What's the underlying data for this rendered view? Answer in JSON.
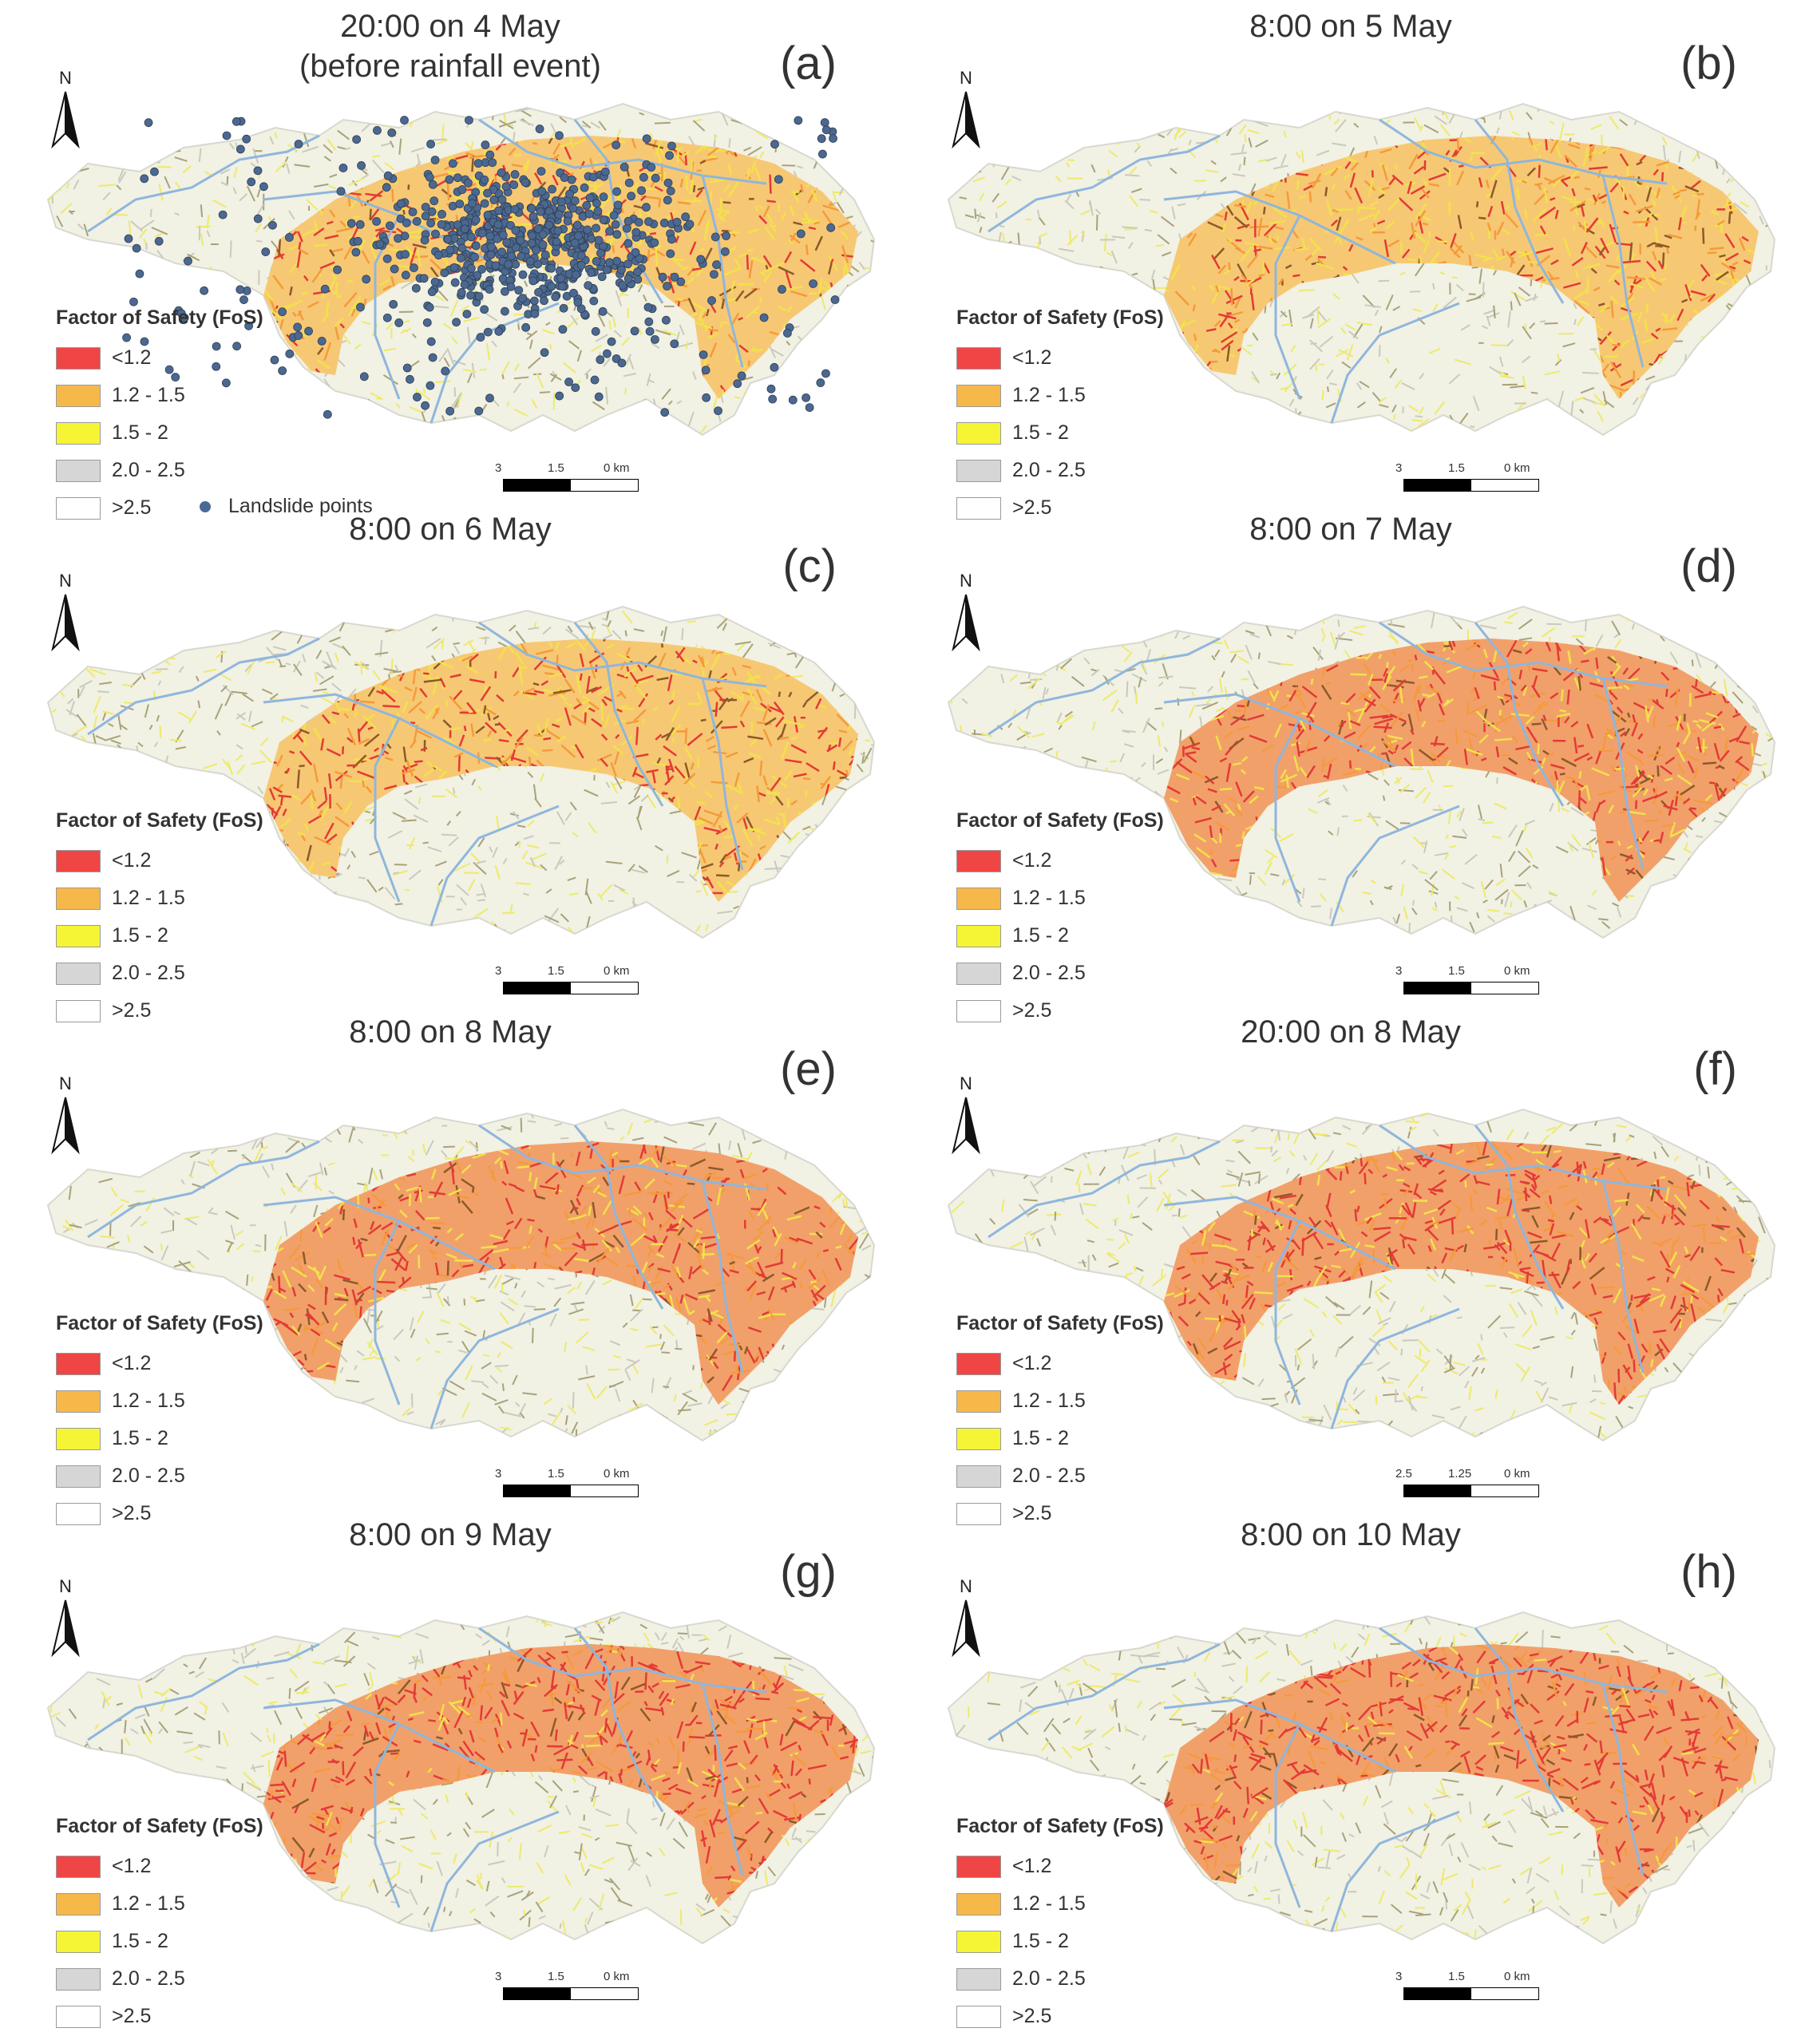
{
  "legend": {
    "title": "Factor of Safety (FoS)",
    "items": [
      {
        "label": "<1.2",
        "color": "#f04545"
      },
      {
        "label": "1.2 - 1.5",
        "color": "#f7b84a"
      },
      {
        "label": "1.5 - 2",
        "color": "#f5f536"
      },
      {
        "label": "2.0 - 2.5",
        "color": "#d6d6d6"
      },
      {
        "label": ">2.5",
        "color": "#ffffff"
      }
    ],
    "landslide_label": "Landslide points"
  },
  "north_label": "N",
  "panels": [
    {
      "letter": "(a)",
      "title": "20:00 on 4 May\n(before rainfall event)",
      "scale": [
        "3",
        "1.5",
        "0 km"
      ],
      "risk": 0.3,
      "landslides": true
    },
    {
      "letter": "(b)",
      "title": "8:00 on 5 May",
      "scale": [
        "3",
        "1.5",
        "0 km"
      ],
      "risk": 0.45,
      "landslides": false
    },
    {
      "letter": "(c)",
      "title": "8:00 on 6 May",
      "scale": [
        "3",
        "1.5",
        "0 km"
      ],
      "risk": 0.55,
      "landslides": false
    },
    {
      "letter": "(d)",
      "title": "8:00 on 7 May",
      "scale": [
        "3",
        "1.5",
        "0 km"
      ],
      "risk": 0.65,
      "landslides": false
    },
    {
      "letter": "(e)",
      "title": "8:00 on 8 May",
      "scale": [
        "3",
        "1.5",
        "0 km"
      ],
      "risk": 0.72,
      "landslides": false
    },
    {
      "letter": "(f)",
      "title": "20:00 on 8 May",
      "scale": [
        "2.5",
        "1.25",
        "0 km"
      ],
      "risk": 0.8,
      "landslides": false
    },
    {
      "letter": "(g)",
      "title": "8:00 on 9 May",
      "scale": [
        "3",
        "1.5",
        "0 km"
      ],
      "risk": 0.88,
      "landslides": false
    },
    {
      "letter": "(h)",
      "title": "8:00 on 10 May",
      "scale": [
        "3",
        "1.5",
        "0 km"
      ],
      "risk": 0.92,
      "landslides": false
    }
  ]
}
